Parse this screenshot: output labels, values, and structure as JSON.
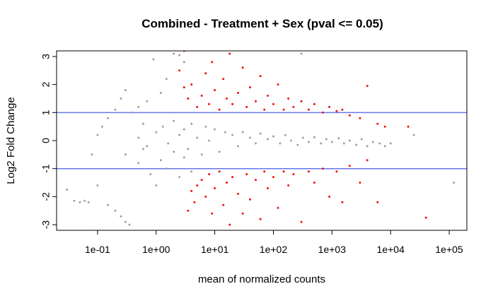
{
  "chart_data": {
    "type": "scatter",
    "title": "Combined - Treatment + Sex  (pval <= 0.05)",
    "xlabel": "mean of normalized counts",
    "ylabel": "Log2 Fold Change",
    "x_scale": "log10",
    "xlim": [
      0.02,
      200000
    ],
    "ylim": [
      -3.2,
      3.2
    ],
    "x_ticks": [
      0.1,
      1,
      10,
      100,
      1000,
      10000,
      100000
    ],
    "x_tick_labels": [
      "1e-01",
      "1e+00",
      "1e+01",
      "1e+02",
      "1e+03",
      "1e+04",
      "1e+05"
    ],
    "y_ticks": [
      -3,
      -2,
      -1,
      0,
      1,
      2,
      3
    ],
    "y_tick_labels": [
      "-3",
      "-2",
      "-1",
      "0",
      "1",
      "2",
      "3"
    ],
    "hlines": [
      -1,
      1
    ],
    "colors": {
      "significant": "#ee1111",
      "not_significant": "#a0a0a0",
      "threshold_line": "#6677ee",
      "frame": "#000000"
    },
    "series": [
      {
        "status": "not_significant",
        "points": [
          [
            0.03,
            -1.75
          ],
          [
            0.04,
            -2.15
          ],
          [
            0.05,
            -2.2
          ],
          [
            0.06,
            -2.15
          ],
          [
            0.07,
            -2.2
          ],
          [
            0.1,
            -1.6
          ],
          [
            0.15,
            -2.3
          ],
          [
            0.2,
            -2.5
          ],
          [
            0.25,
            -2.7
          ],
          [
            0.3,
            -2.9
          ],
          [
            0.35,
            -3.0
          ],
          [
            0.08,
            -0.5
          ],
          [
            0.1,
            0.2
          ],
          [
            0.12,
            0.5
          ],
          [
            0.15,
            0.8
          ],
          [
            0.2,
            1.1
          ],
          [
            0.25,
            1.5
          ],
          [
            0.3,
            1.8
          ],
          [
            0.4,
            1.0
          ],
          [
            0.5,
            1.2
          ],
          [
            0.6,
            0.6
          ],
          [
            0.7,
            1.4
          ],
          [
            0.9,
            2.9
          ],
          [
            1.2,
            1.7
          ],
          [
            1.5,
            2.2
          ],
          [
            2,
            3.1
          ],
          [
            2.5,
            3.05
          ],
          [
            3,
            2.8
          ],
          [
            0.3,
            -0.5
          ],
          [
            0.5,
            -0.8
          ],
          [
            0.6,
            -0.3
          ],
          [
            0.8,
            -1.2
          ],
          [
            1,
            -1.6
          ],
          [
            1.2,
            -0.7
          ],
          [
            1.5,
            -1.0
          ],
          [
            2,
            -0.4
          ],
          [
            2.5,
            -1.3
          ],
          [
            3,
            -0.6
          ],
          [
            4,
            -1.1
          ],
          [
            0.5,
            0.1
          ],
          [
            0.7,
            -0.2
          ],
          [
            1,
            0.3
          ],
          [
            1.3,
            0.5
          ],
          [
            1.6,
            -0.1
          ],
          [
            2,
            0.7
          ],
          [
            2.5,
            0.2
          ],
          [
            3,
            0.4
          ],
          [
            3.5,
            -0.3
          ],
          [
            4,
            0.6
          ],
          [
            5,
            0.1
          ],
          [
            6,
            -0.5
          ],
          [
            7,
            0.5
          ],
          [
            8,
            0.0
          ],
          [
            10,
            0.4
          ],
          [
            12,
            -0.4
          ],
          [
            15,
            0.3
          ],
          [
            20,
            0.2
          ],
          [
            25,
            -0.2
          ],
          [
            30,
            0.3
          ],
          [
            40,
            0.1
          ],
          [
            50,
            -0.1
          ],
          [
            60,
            0.25
          ],
          [
            80,
            0.05
          ],
          [
            100,
            0.15
          ],
          [
            130,
            -0.1
          ],
          [
            160,
            0.2
          ],
          [
            200,
            0.0
          ],
          [
            260,
            -0.15
          ],
          [
            320,
            0.1
          ],
          [
            400,
            -0.05
          ],
          [
            500,
            0.12
          ],
          [
            650,
            -0.1
          ],
          [
            800,
            0.05
          ],
          [
            1000,
            -0.05
          ],
          [
            1300,
            0.08
          ],
          [
            1600,
            -0.1
          ],
          [
            2000,
            0.0
          ],
          [
            2600,
            -0.15
          ],
          [
            3200,
            0.05
          ],
          [
            4000,
            -0.2
          ],
          [
            5000,
            -0.05
          ],
          [
            6500,
            -0.1
          ],
          [
            8000,
            -0.2
          ],
          [
            10000,
            -0.1
          ],
          [
            25000,
            0.2
          ],
          [
            120000,
            -1.5
          ],
          [
            300,
            3.1
          ]
        ]
      },
      {
        "status": "significant",
        "points": [
          [
            3,
            3.2
          ],
          [
            2.5,
            2.5
          ],
          [
            3,
            1.9
          ],
          [
            3.5,
            1.5
          ],
          [
            4,
            2.0
          ],
          [
            4,
            -1.8
          ],
          [
            4.5,
            -2.2
          ],
          [
            5,
            -1.6
          ],
          [
            3.5,
            -2.5
          ],
          [
            5,
            1.2
          ],
          [
            6,
            1.6
          ],
          [
            7,
            2.4
          ],
          [
            8,
            1.3
          ],
          [
            9,
            2.8
          ],
          [
            10,
            1.8
          ],
          [
            12,
            1.1
          ],
          [
            14,
            2.2
          ],
          [
            16,
            1.5
          ],
          [
            18,
            3.1
          ],
          [
            20,
            1.3
          ],
          [
            25,
            1.7
          ],
          [
            30,
            2.6
          ],
          [
            35,
            1.2
          ],
          [
            40,
            1.9
          ],
          [
            50,
            1.4
          ],
          [
            60,
            2.3
          ],
          [
            70,
            1.1
          ],
          [
            80,
            1.6
          ],
          [
            100,
            1.3
          ],
          [
            120,
            2.0
          ],
          [
            150,
            1.1
          ],
          [
            180,
            1.5
          ],
          [
            220,
            1.2
          ],
          [
            300,
            1.4
          ],
          [
            400,
            1.1
          ],
          [
            500,
            1.3
          ],
          [
            700,
            1.0
          ],
          [
            900,
            1.2
          ],
          [
            1200,
            1.05
          ],
          [
            1500,
            1.1
          ],
          [
            2000,
            0.9
          ],
          [
            3000,
            0.8
          ],
          [
            4000,
            1.95
          ],
          [
            6000,
            0.6
          ],
          [
            8000,
            0.5
          ],
          [
            20000,
            0.5
          ],
          [
            6,
            -1.4
          ],
          [
            7,
            -2.0
          ],
          [
            8,
            -1.2
          ],
          [
            9,
            -2.6
          ],
          [
            10,
            -1.7
          ],
          [
            12,
            -1.1
          ],
          [
            14,
            -2.3
          ],
          [
            16,
            -1.5
          ],
          [
            18,
            -3.0
          ],
          [
            20,
            -1.3
          ],
          [
            25,
            -1.9
          ],
          [
            30,
            -2.6
          ],
          [
            35,
            -1.2
          ],
          [
            40,
            -2.1
          ],
          [
            50,
            -1.4
          ],
          [
            60,
            -2.8
          ],
          [
            70,
            -1.1
          ],
          [
            80,
            -1.7
          ],
          [
            100,
            -1.3
          ],
          [
            120,
            -2.4
          ],
          [
            150,
            -1.1
          ],
          [
            180,
            -1.6
          ],
          [
            220,
            -1.2
          ],
          [
            300,
            -2.9
          ],
          [
            400,
            -1.1
          ],
          [
            500,
            -1.5
          ],
          [
            700,
            -1.0
          ],
          [
            900,
            -2.0
          ],
          [
            1200,
            -1.1
          ],
          [
            1500,
            -2.2
          ],
          [
            2000,
            -0.9
          ],
          [
            3000,
            -1.5
          ],
          [
            4000,
            -0.7
          ],
          [
            6000,
            -2.2
          ],
          [
            40000,
            -2.75
          ]
        ]
      }
    ]
  }
}
